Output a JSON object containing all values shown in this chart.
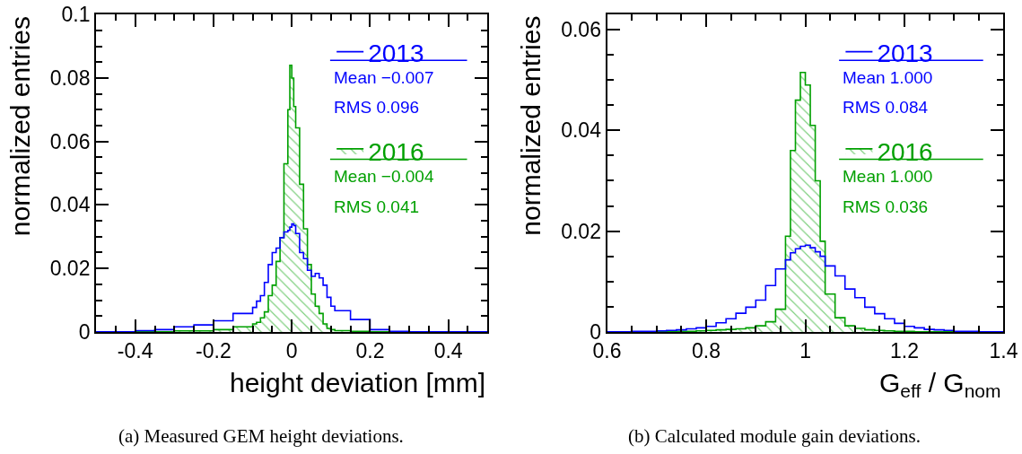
{
  "chart_data": [
    {
      "type": "histogram",
      "title": "(a) Measured GEM height deviations.",
      "xlabel": "height deviation [mm]",
      "ylabel": "normalized entries",
      "bins": [
        -0.5,
        -0.45,
        -0.4,
        -0.35,
        -0.3,
        -0.25,
        -0.2,
        -0.15,
        -0.1,
        -0.09,
        -0.08,
        -0.07,
        -0.06,
        -0.05,
        -0.04,
        -0.03,
        -0.02,
        -0.01,
        -0.005,
        0,
        0.005,
        0.01,
        0.02,
        0.03,
        0.04,
        0.05,
        0.06,
        0.07,
        0.08,
        0.09,
        0.1,
        0.11,
        0.15,
        0.2,
        0.25,
        0.3,
        0.35,
        0.4,
        0.45,
        0.5
      ],
      "series": [
        {
          "name": "2013",
          "type": "step",
          "color": "#0000ff",
          "x": [
            -0.5,
            -0.45,
            -0.4,
            -0.35,
            -0.3,
            -0.25,
            -0.2,
            -0.15,
            -0.1,
            -0.09,
            -0.08,
            -0.07,
            -0.06,
            -0.05,
            -0.04,
            -0.03,
            -0.02,
            -0.01,
            -0.005,
            0,
            0.005,
            0.01,
            0.02,
            0.03,
            0.04,
            0.05,
            0.06,
            0.07,
            0.08,
            0.09,
            0.1,
            0.11,
            0.15,
            0.2,
            0.25,
            0.3,
            0.35,
            0.4,
            0.45,
            0.5
          ],
          "values": [
            0,
            0,
            0.0004,
            0.0007,
            0.0016,
            0.0022,
            0.0035,
            0.0058,
            0.0077,
            0.0097,
            0.0114,
            0.0156,
            0.0212,
            0.025,
            0.0264,
            0.0297,
            0.0315,
            0.032,
            0.033,
            0.034,
            0.0335,
            0.031,
            0.025,
            0.0231,
            0.0194,
            0.0175,
            0.0184,
            0.017,
            0.0147,
            0.0109,
            0.0081,
            0.0067,
            0.0039,
            0.0007,
            0.0002,
            0,
            0,
            0,
            0,
            0
          ]
        },
        {
          "name": "2016",
          "type": "histogram",
          "color": "#00a000",
          "values": [
            0,
            0,
            0,
            0,
            0.0003,
            0.0003,
            0.0007,
            0.0016,
            0.0025,
            0.003,
            0.0044,
            0.0063,
            0.0114,
            0.0147,
            0.0222,
            0.0297,
            0.053,
            0.07,
            0.084,
            0.08,
            0.071,
            0.0643,
            0.0465,
            0.0325,
            0.0212,
            0.0119,
            0.0081,
            0.0058,
            0.0025,
            0.0011,
            0.0007,
            0.0004,
            0.0002,
            0,
            0,
            0,
            0,
            0,
            0
          ]
        }
      ],
      "annotations": [
        "Mean −0.007",
        "RMS 0.096",
        "Mean −0.004",
        "RMS 0.041"
      ],
      "xlim": [
        -0.5,
        0.5
      ],
      "xticks": [
        {
          "value": -0.45,
          "label": null
        },
        -0.4,
        {
          "value": -0.35,
          "label": null
        },
        {
          "value": -0.3,
          "label": null
        },
        {
          "value": -0.25,
          "label": null
        },
        -0.2,
        {
          "value": -0.15,
          "label": null
        },
        {
          "value": -0.1,
          "label": null
        },
        {
          "value": -0.05,
          "label": null
        },
        0,
        {
          "value": 0.05,
          "label": null
        },
        {
          "value": 0.1,
          "label": null
        },
        {
          "value": 0.15,
          "label": null
        },
        0.2,
        {
          "value": 0.25,
          "label": null
        },
        {
          "value": 0.3,
          "label": null
        },
        {
          "value": 0.35,
          "label": null
        },
        0.4,
        {
          "value": 0.45,
          "label": null
        }
      ],
      "ylim": [
        0,
        0.1
      ],
      "yticks": [
        0,
        {
          "value": 0.005,
          "label": null
        },
        {
          "value": 0.01,
          "label": null
        },
        {
          "value": 0.015,
          "label": null
        },
        0.02,
        {
          "value": 0.025,
          "label": null
        },
        {
          "value": 0.03,
          "label": null
        },
        {
          "value": 0.035,
          "label": null
        },
        0.04,
        {
          "value": 0.045,
          "label": null
        },
        {
          "value": 0.05,
          "label": null
        },
        {
          "value": 0.055,
          "label": null
        },
        0.06,
        {
          "value": 0.065,
          "label": null
        },
        {
          "value": 0.07,
          "label": null
        },
        {
          "value": 0.075,
          "label": null
        },
        0.08,
        {
          "value": 0.085,
          "label": null
        },
        {
          "value": 0.09,
          "label": null
        },
        {
          "value": 0.095,
          "label": null
        },
        0.1
      ],
      "legend": "top right"
    },
    {
      "type": "histogram",
      "title": "(b) Calculated module gain deviations.",
      "xlabel": "G$_{eff}$ / G$_{nom}$",
      "ylabel": "normalized entries",
      "bins": [
        0.6,
        0.65,
        0.7,
        0.72,
        0.74,
        0.76,
        0.78,
        0.8,
        0.82,
        0.84,
        0.86,
        0.88,
        0.9,
        0.92,
        0.94,
        0.96,
        0.97,
        0.98,
        0.99,
        1,
        1.01,
        1.02,
        1.03,
        1.04,
        1.06,
        1.08,
        1.1,
        1.12,
        1.14,
        1.16,
        1.18,
        1.2,
        1.22,
        1.24,
        1.26,
        1.28,
        1.3,
        1.35,
        1.4
      ],
      "series": [
        {
          "name": "2013",
          "type": "step",
          "color": "#0000ff",
          "x": [
            0.6,
            0.65,
            0.7,
            0.72,
            0.74,
            0.76,
            0.78,
            0.8,
            0.82,
            0.84,
            0.86,
            0.88,
            0.9,
            0.92,
            0.94,
            0.96,
            0.97,
            0.98,
            0.99,
            1,
            1.01,
            1.02,
            1.03,
            1.04,
            1.06,
            1.08,
            1.1,
            1.12,
            1.14,
            1.16,
            1.18,
            1.2,
            1.22,
            1.24,
            1.26,
            1.28,
            1.3,
            1.35,
            1.4
          ],
          "values": [
            0,
            0.0001,
            0.0002,
            0.0003,
            0.0004,
            0.0006,
            0.0008,
            0.0011,
            0.0018,
            0.0026,
            0.0037,
            0.0049,
            0.0063,
            0.0092,
            0.0125,
            0.0143,
            0.0157,
            0.0165,
            0.017,
            0.0172,
            0.0167,
            0.0159,
            0.015,
            0.0131,
            0.0111,
            0.0085,
            0.0068,
            0.0049,
            0.0036,
            0.0026,
            0.0017,
            0.0011,
            0.0008,
            0.0005,
            0.0004,
            0.0003,
            0.0001,
            0,
            0
          ]
        },
        {
          "name": "2016",
          "type": "histogram",
          "color": "#00a000",
          "values": [
            0,
            0,
            0,
            0,
            0.0001,
            0.0001,
            0.0002,
            0.0003,
            0.0004,
            0.0005,
            0.0006,
            0.0008,
            0.0012,
            0.002,
            0.0045,
            0.019,
            0.036,
            0.046,
            0.0515,
            0.049,
            0.041,
            0.03,
            0.018,
            0.0075,
            0.0028,
            0.0012,
            0.0007,
            0.0004,
            0.0003,
            0.0002,
            0.0001,
            0.0001,
            0,
            0,
            0,
            0,
            0,
            0
          ]
        }
      ],
      "annotations": [
        "Mean 1.000",
        "RMS 0.084",
        "Mean 1.000",
        "RMS 0.036"
      ],
      "xlim": [
        0.6,
        1.4
      ],
      "xticks": [
        0.6,
        {
          "value": 0.65,
          "label": null
        },
        {
          "value": 0.7,
          "label": null
        },
        {
          "value": 0.75,
          "label": null
        },
        0.8,
        {
          "value": 0.85,
          "label": null
        },
        {
          "value": 0.9,
          "label": null
        },
        {
          "value": 0.95,
          "label": null
        },
        1,
        {
          "value": 1.05,
          "label": null
        },
        {
          "value": 1.1,
          "label": null
        },
        {
          "value": 1.15,
          "label": null
        },
        1.2,
        {
          "value": 1.25,
          "label": null
        },
        {
          "value": 1.3,
          "label": null
        },
        {
          "value": 1.35,
          "label": null
        },
        1.4
      ],
      "ylim": [
        0,
        0.063
      ],
      "yticks": [
        0,
        {
          "value": 0.005,
          "label": null
        },
        {
          "value": 0.01,
          "label": null
        },
        {
          "value": 0.015,
          "label": null
        },
        0.02,
        {
          "value": 0.025,
          "label": null
        },
        {
          "value": 0.03,
          "label": null
        },
        {
          "value": 0.035,
          "label": null
        },
        0.04,
        {
          "value": 0.045,
          "label": null
        },
        {
          "value": 0.05,
          "label": null
        },
        {
          "value": 0.055,
          "label": null
        },
        0.06
      ],
      "legend": "top right"
    }
  ]
}
